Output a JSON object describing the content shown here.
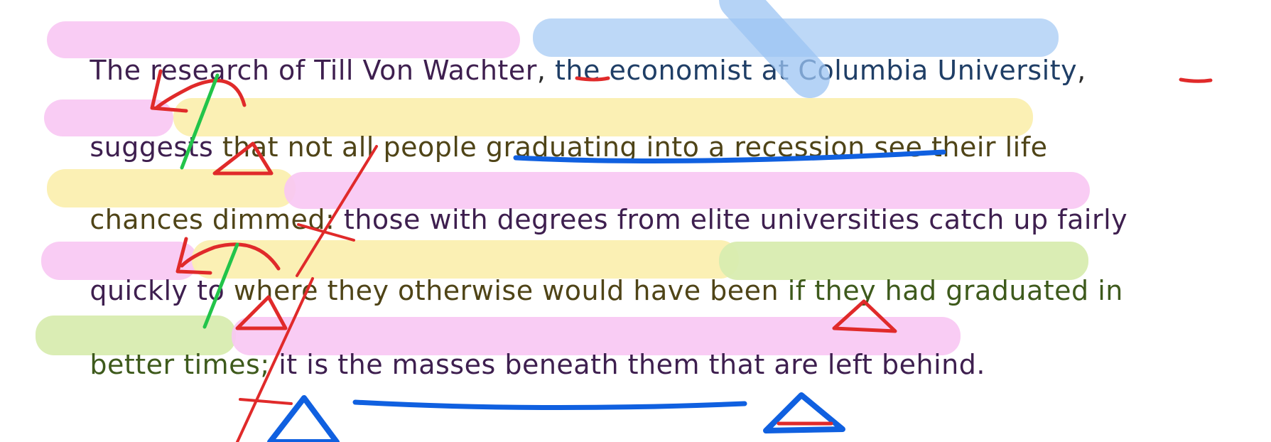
{
  "line1": {
    "seg1": "The research of Till Von Wachter",
    "seg2": ", ",
    "seg3": "the economist at Columbia University",
    "seg4": ","
  },
  "line2": {
    "seg1": "suggests",
    "seg2": " that not all people ",
    "seg3": "graduating into a recession",
    "seg4": " see their life"
  },
  "line3": {
    "seg1": "chances dimmed: ",
    "seg2": "those with degrees from elite universities catch up fairly"
  },
  "line4": {
    "seg1": "quickly to ",
    "seg2": "where they otherwise would have been ",
    "seg3": "if they had graduated in"
  },
  "line5": {
    "seg1": "better times; ",
    "seg2": "it is ",
    "seg3": "the masses beneath them",
    "seg4": " that are left behind."
  },
  "colors": {
    "highlight_pink": "#f8c8f3",
    "highlight_yellow": "#fbefb0",
    "highlight_green": "#d8ecb0",
    "highlight_blue": "#b9d6f7",
    "ink_red": "#e02a2a",
    "ink_blue": "#1060e0",
    "ink_green": "#22c44a"
  }
}
